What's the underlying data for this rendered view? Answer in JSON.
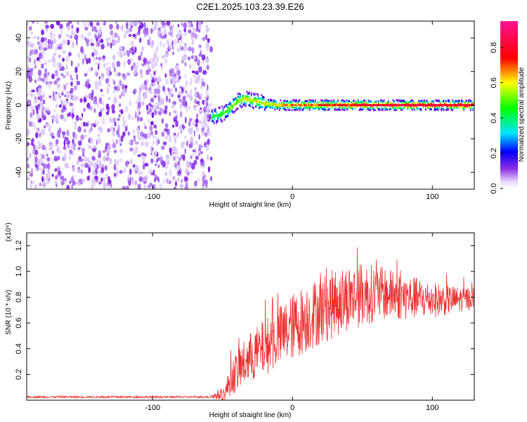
{
  "title": "C2E1.2025.103.23.39.E26",
  "colors": {
    "snr_line": "#ee3030",
    "noise_dot": "#8a2be2"
  },
  "chart_data": [
    {
      "type": "heatmap",
      "title": "C2E1.2025.103.23.39.E26",
      "xlabel": "Height of straight line (km)",
      "ylabel": "Frequency (Hz)",
      "xlim": [
        -190,
        130
      ],
      "ylim": [
        -50,
        50
      ],
      "x_ticks": [
        -100,
        0,
        100
      ],
      "y_ticks": [
        -40,
        -20,
        0,
        20,
        40
      ],
      "x_tick_labels": [
        "-100",
        "0",
        "100"
      ],
      "y_tick_labels": [
        "-40",
        "-20",
        "0",
        "20",
        "40"
      ],
      "colorbar": {
        "label": "Normalized spectral amplitude",
        "range": [
          0,
          0.95
        ],
        "ticks": [
          0.0,
          0.2,
          0.4,
          0.6,
          0.8
        ],
        "tick_labels": [
          "0.0",
          "0.2",
          "0.4",
          "0.6",
          "0.8"
        ]
      },
      "noise_region": {
        "x_from": -190,
        "x_to": -58
      },
      "ridge": {
        "x": [
          -58,
          -50,
          -45,
          -40,
          -35,
          -30,
          -25,
          -20,
          -10,
          0,
          20,
          40,
          60,
          80,
          100,
          130
        ],
        "freq": [
          -7,
          -5,
          -2,
          2,
          4,
          3,
          2,
          1,
          0,
          0,
          0,
          0,
          0,
          0,
          0,
          0
        ],
        "peak_amplitude": [
          0.45,
          0.5,
          0.55,
          0.55,
          0.6,
          0.6,
          0.6,
          0.6,
          0.65,
          0.7,
          0.75,
          0.8,
          0.85,
          0.85,
          0.85,
          0.85
        ]
      }
    },
    {
      "type": "line",
      "xlabel": "Height of straight line (km)",
      "ylabel": "SNR (10 * v/v)",
      "y_multiplier": "(x10⁴)",
      "xlim": [
        -190,
        130
      ],
      "ylim": [
        0,
        1.3
      ],
      "x_ticks": [
        -100,
        0,
        100
      ],
      "y_ticks": [
        0.2,
        0.4,
        0.6,
        0.8,
        1.0,
        1.2
      ],
      "x_tick_labels": [
        "-100",
        "0",
        "100"
      ],
      "y_tick_labels": [
        "0.2",
        "0.4",
        "0.6",
        "0.8",
        "1.0",
        "1.2"
      ],
      "series": [
        {
          "x": [
            -190,
            -150,
            -100,
            -60,
            -48,
            -45,
            -40,
            -35,
            -30,
            -25,
            -20,
            -15,
            -10,
            -5,
            0,
            10,
            20,
            30,
            40,
            50,
            60,
            70,
            80,
            90,
            100,
            110,
            120,
            130
          ],
          "mean": [
            0.025,
            0.025,
            0.025,
            0.025,
            0.05,
            0.15,
            0.22,
            0.28,
            0.33,
            0.37,
            0.41,
            0.45,
            0.49,
            0.53,
            0.57,
            0.64,
            0.7,
            0.75,
            0.8,
            0.82,
            0.83,
            0.82,
            0.8,
            0.79,
            0.78,
            0.78,
            0.78,
            0.8
          ],
          "spread": [
            0.008,
            0.008,
            0.008,
            0.008,
            0.06,
            0.12,
            0.16,
            0.18,
            0.2,
            0.21,
            0.22,
            0.23,
            0.24,
            0.25,
            0.26,
            0.27,
            0.27,
            0.27,
            0.26,
            0.25,
            0.22,
            0.2,
            0.18,
            0.16,
            0.14,
            0.12,
            0.1,
            0.09
          ]
        }
      ]
    }
  ]
}
